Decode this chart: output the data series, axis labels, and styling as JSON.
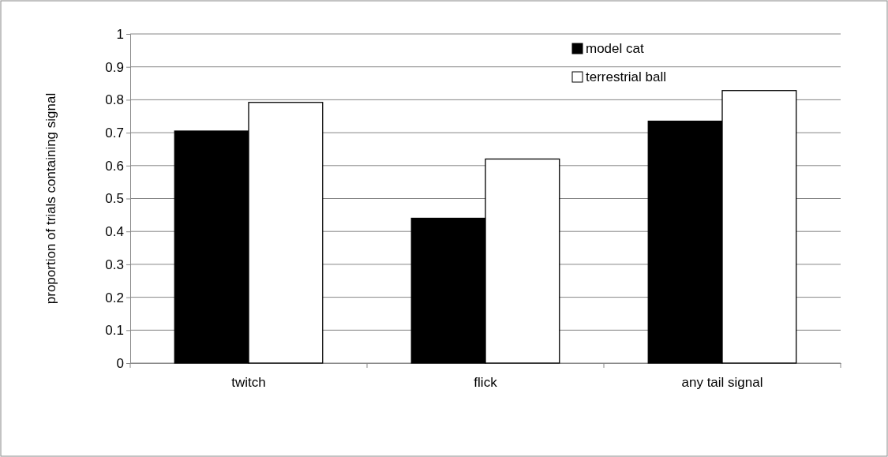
{
  "chart_data": {
    "type": "bar",
    "ylabel": "proportion of trials containing signal",
    "categories": [
      "twitch",
      "flick",
      "any tail signal"
    ],
    "series": [
      {
        "name": "model cat",
        "color": "#000000",
        "values": [
          0.705,
          0.44,
          0.735
        ]
      },
      {
        "name": "terrestrial ball",
        "color": "#ffffff",
        "values": [
          0.792,
          0.62,
          0.828
        ]
      }
    ],
    "ylim": [
      0,
      1
    ],
    "yticks": [
      0,
      {
        "value": 0.1,
        "label": "0.1"
      },
      {
        "value": 0.2,
        "label": "0.2"
      },
      {
        "value": 0.3,
        "label": "0.3"
      },
      {
        "value": 0.4,
        "label": "0.4"
      },
      {
        "value": 0.5,
        "label": "0.5"
      },
      {
        "value": 0.6,
        "label": "0.6"
      },
      {
        "value": 0.7,
        "label": "0.7"
      },
      {
        "value": 0.8,
        "label": "0.8"
      },
      {
        "value": 0.9,
        "label": "0.9"
      },
      1
    ],
    "grid": "y",
    "legend": "top right"
  }
}
